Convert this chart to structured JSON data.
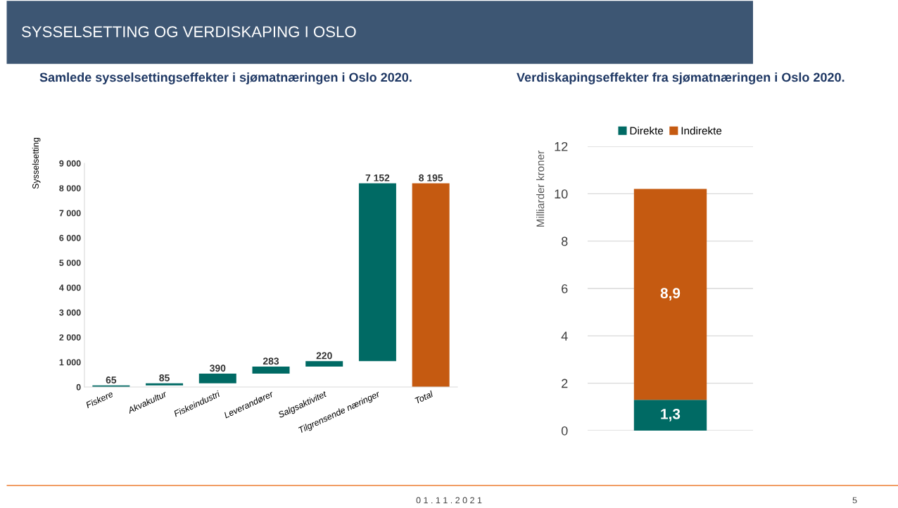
{
  "chart_data": [
    {
      "type": "bar",
      "title": "Samlede sysselsettingseffekter i sjømatnæringen i Oslo 2020.",
      "ylabel": "Sysselsetting",
      "annotations": [
        "SYSSELSETTING OG VERDISKAPING I OSLO"
      ],
      "categories": [
        "Fiskere",
        "Akvakultur",
        "Fiskeindustri",
        "Leverandører",
        "Salgsaktivitet",
        "Tilgrensende næringer",
        "Total"
      ],
      "values": [
        65,
        85,
        390,
        283,
        220,
        7152,
        8195
      ],
      "base": [
        0,
        65,
        150,
        540,
        823,
        1043,
        0
      ],
      "colors": [
        "#006a64",
        "#006a64",
        "#006a64",
        "#006a64",
        "#006a64",
        "#006a64",
        "#c55a11"
      ],
      "value_labels": [
        "65",
        "85",
        "390",
        "283",
        "220",
        "7 152",
        "8 195"
      ],
      "ylim": [
        0,
        9000
      ],
      "yticks": [
        0,
        {
          "value": 1000,
          "label": "1 000"
        },
        {
          "value": 2000,
          "label": "2 000"
        },
        {
          "value": 3000,
          "label": "3 000"
        },
        {
          "value": 4000,
          "label": "4 000"
        },
        {
          "value": 5000,
          "label": "5 000"
        },
        {
          "value": 6000,
          "label": "6 000"
        },
        {
          "value": 7000,
          "label": "7 000"
        },
        {
          "value": 8000,
          "label": "8 000"
        },
        {
          "value": 9000,
          "label": "9 000"
        }
      ],
      "grid": false,
      "legend": false
    },
    {
      "type": "bar",
      "stacked": true,
      "title": "Verdiskapingseffekter fra sjømatnæringen i Oslo 2020.",
      "ylabel": "Milliarder kroner",
      "annotations": [
        "0 1 . 1 1 . 2 0 2 1",
        "5"
      ],
      "categories": [
        null
      ],
      "series": [
        {
          "name": "Direkte",
          "color": "#006a64",
          "values": [
            1.3
          ],
          "value_labels": [
            "1,3"
          ]
        },
        {
          "name": "Indirekte",
          "color": "#c55a11",
          "values": [
            8.9
          ],
          "value_labels": [
            "8,9"
          ]
        }
      ],
      "ylim": [
        0,
        12
      ],
      "yticks": [
        0,
        2,
        4,
        6,
        8,
        10,
        12
      ],
      "grid": "y",
      "legend": "top"
    }
  ]
}
